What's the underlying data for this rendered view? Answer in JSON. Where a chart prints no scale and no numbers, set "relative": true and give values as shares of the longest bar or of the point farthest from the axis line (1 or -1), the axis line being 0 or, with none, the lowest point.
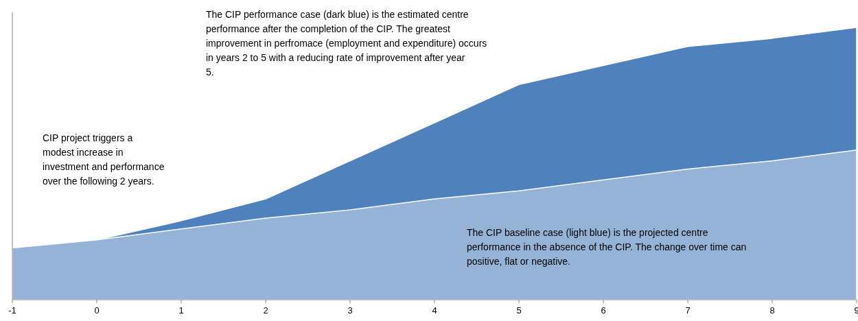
{
  "chart_data": {
    "type": "area",
    "relative": true,
    "x": [
      -1,
      0,
      1,
      2,
      3,
      4,
      5,
      6,
      7,
      8,
      9
    ],
    "xlim": [
      -1,
      9
    ],
    "xticks": [
      -1,
      0,
      1,
      2,
      3,
      4,
      5,
      6,
      7,
      8,
      9
    ],
    "tick_labels": "x",
    "series": [
      {
        "color": "#4f81bd",
        "values": [
          0.19,
          0.22,
          0.29,
          0.37,
          0.51,
          0.65,
          0.79,
          0.86,
          0.93,
          0.96,
          1
        ]
      },
      {
        "color": "#95b3d7",
        "values": [
          0.19,
          0.22,
          0.26,
          0.3,
          0.33,
          0.37,
          0.4,
          0.44,
          0.48,
          0.51,
          0.55
        ]
      }
    ],
    "annotations": [
      "The CIP performance case (dark blue)  is the estimated centre performance after the completion of the CIP. The greatest improvement in perfromace (employment and expenditure) occurs in years 2 to 5 with a reducing rate of improvement after year 5.",
      "CIP project  triggers a modest increase in investment and performance over the following 2 years.",
      "The CIP baseline case (light blue)  is the projected centre performance in the absence of the CIP.  The change over time can positive, flat or negative."
    ]
  }
}
